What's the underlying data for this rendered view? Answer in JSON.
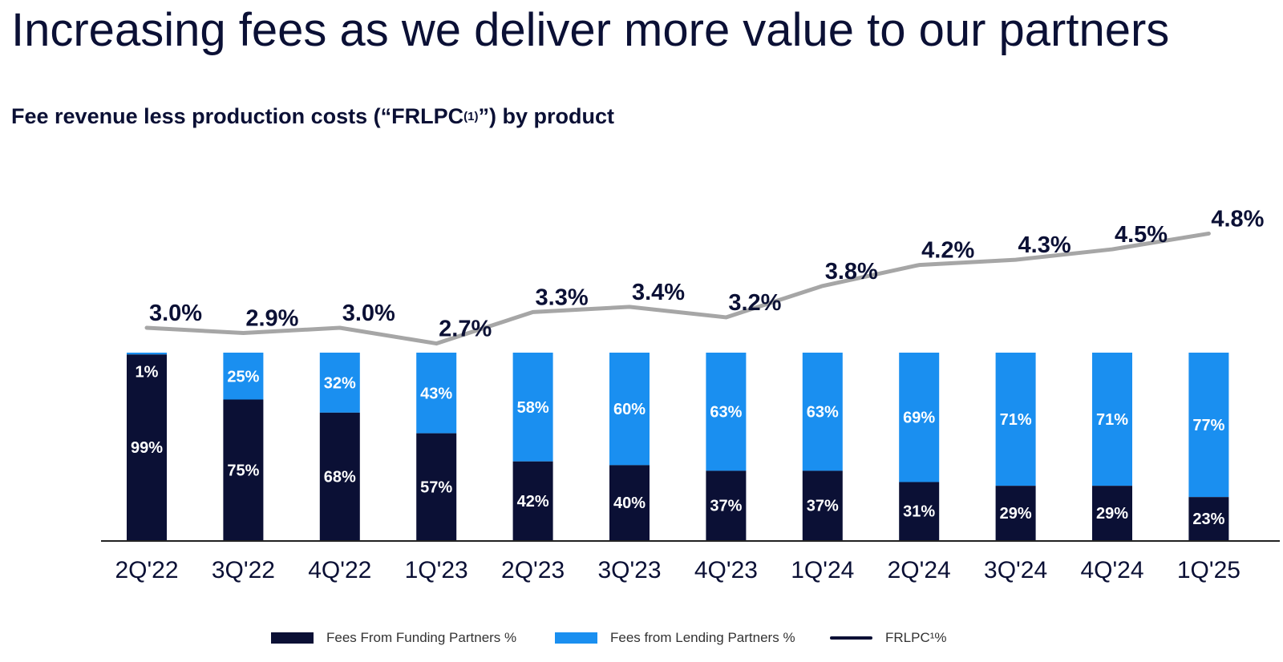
{
  "page": {
    "title": "Increasing fees as we deliver more value to our partners",
    "subtitle_main": "Fee revenue less production costs (“FRLPC",
    "subtitle_sup": "(1)",
    "subtitle_end": "”) by product"
  },
  "legend": {
    "funding": "Fees From Funding Partners %",
    "lending": "Fees from Lending Partners %",
    "frlpc": "FRLPC¹%"
  },
  "colors": {
    "funding": "#0b1035",
    "lending": "#1a8ff0",
    "line": "#a6a6a6",
    "text": "#0b1035"
  },
  "chart_data": {
    "type": "bar",
    "stacked": true,
    "categories": [
      "2Q'22",
      "3Q'22",
      "4Q'22",
      "1Q'23",
      "2Q'23",
      "3Q'23",
      "4Q'23",
      "1Q'24",
      "2Q'24",
      "3Q'24",
      "4Q'24",
      "1Q'25"
    ],
    "series": [
      {
        "name": "Fees From Funding Partners %",
        "values": [
          99,
          75,
          68,
          57,
          42,
          40,
          37,
          37,
          31,
          29,
          29,
          23
        ],
        "labels": [
          "99%",
          "75%",
          "68%",
          "57%",
          "42%",
          "40%",
          "37%",
          "37%",
          "31%",
          "29%",
          "29%",
          "23%"
        ]
      },
      {
        "name": "Fees from Lending Partners %",
        "values": [
          1,
          25,
          32,
          43,
          58,
          60,
          63,
          63,
          69,
          71,
          71,
          77
        ],
        "labels": [
          "1%",
          "25%",
          "32%",
          "43%",
          "58%",
          "60%",
          "63%",
          "63%",
          "69%",
          "71%",
          "71%",
          "77%"
        ]
      }
    ],
    "line": {
      "name": "FRLPC¹%",
      "type": "line",
      "values": [
        3.0,
        2.9,
        3.0,
        2.7,
        3.3,
        3.4,
        3.2,
        3.8,
        4.2,
        4.3,
        4.5,
        4.8
      ],
      "labels": [
        "3.0%",
        "2.9%",
        "3.0%",
        "2.7%",
        "3.3%",
        "3.4%",
        "3.2%",
        "3.8%",
        "4.2%",
        "4.3%",
        "4.5%",
        "4.8%"
      ]
    },
    "ylim": [
      0,
      100
    ],
    "legend_position": "bottom"
  }
}
